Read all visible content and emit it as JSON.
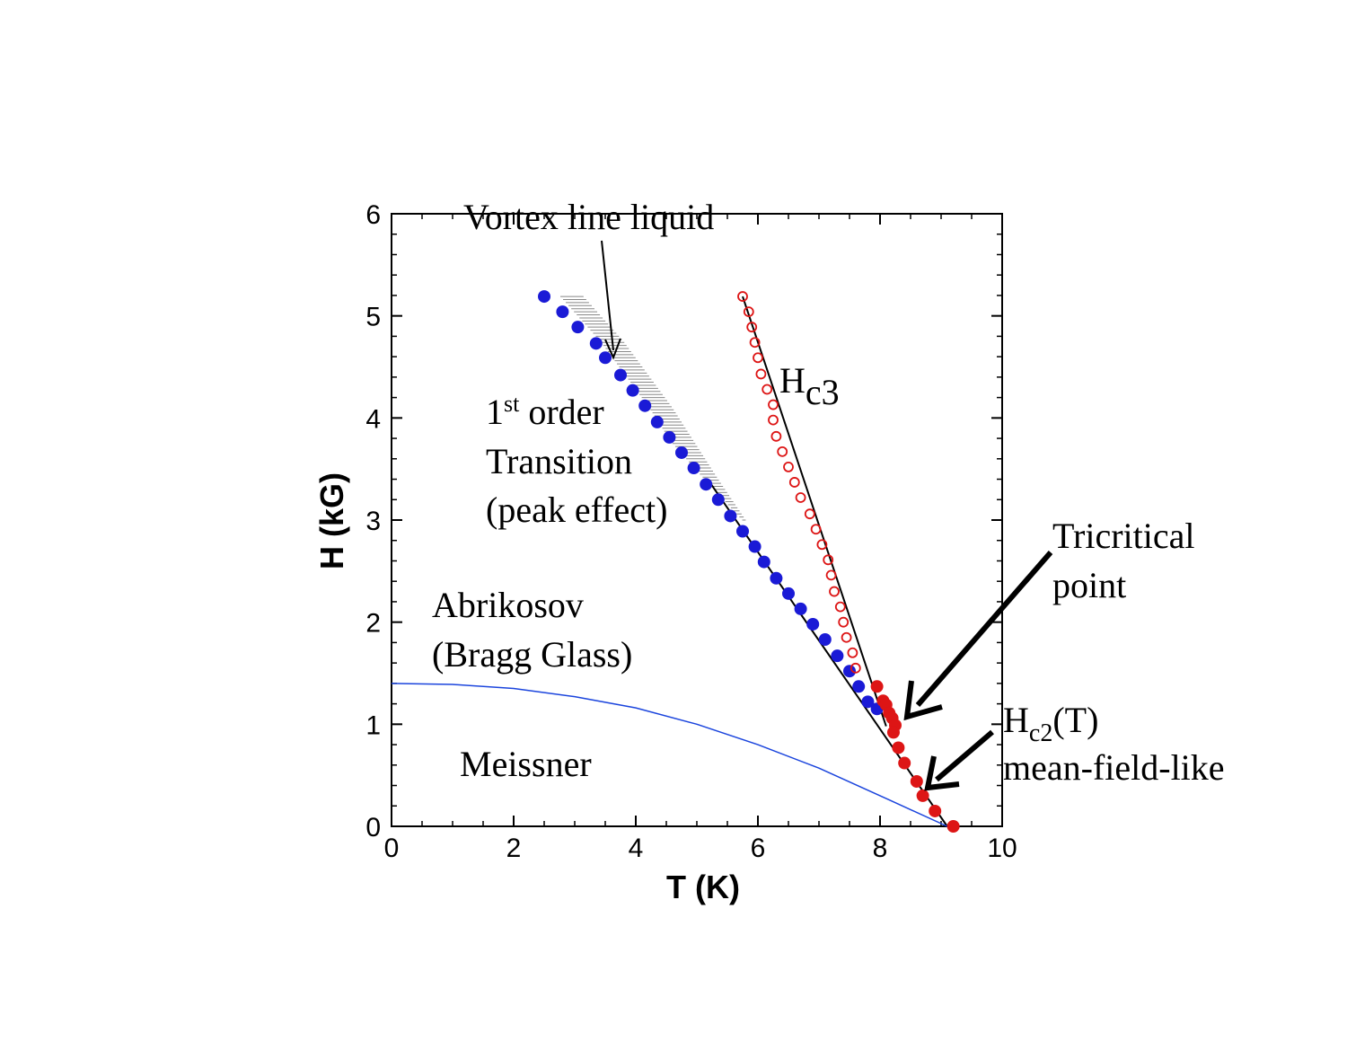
{
  "chart_data": {
    "type": "scatter",
    "xlabel": "T (K)",
    "ylabel": "H (kG)",
    "xlim": [
      0,
      10
    ],
    "ylim": [
      0,
      6
    ],
    "x_ticks": [
      "0",
      "2",
      "4",
      "6",
      "8",
      "10"
    ],
    "y_ticks": [
      "0",
      "1",
      "2",
      "3",
      "4",
      "5",
      "6"
    ],
    "grid": false,
    "series": [
      {
        "marker": "filled-circle",
        "color": "#1a1ad6",
        "points": [
          [
            2.5,
            5.19
          ],
          [
            2.8,
            5.04
          ],
          [
            3.05,
            4.89
          ],
          [
            3.35,
            4.73
          ],
          [
            3.5,
            4.59
          ],
          [
            3.75,
            4.42
          ],
          [
            3.95,
            4.27
          ],
          [
            4.15,
            4.12
          ],
          [
            4.35,
            3.96
          ],
          [
            4.55,
            3.81
          ],
          [
            4.75,
            3.66
          ],
          [
            4.95,
            3.51
          ],
          [
            5.15,
            3.35
          ],
          [
            5.35,
            3.2
          ],
          [
            5.55,
            3.04
          ],
          [
            5.75,
            2.89
          ],
          [
            5.95,
            2.74
          ],
          [
            6.1,
            2.59
          ],
          [
            6.3,
            2.43
          ],
          [
            6.5,
            2.28
          ],
          [
            6.7,
            2.13
          ],
          [
            6.9,
            1.98
          ],
          [
            7.1,
            1.83
          ],
          [
            7.3,
            1.67
          ],
          [
            7.5,
            1.52
          ],
          [
            7.65,
            1.37
          ],
          [
            7.8,
            1.22
          ],
          [
            7.95,
            1.15
          ]
        ]
      },
      {
        "marker": "filled-circle",
        "color": "#dd1515",
        "points": [
          [
            7.95,
            1.37
          ],
          [
            8.05,
            1.23
          ],
          [
            8.1,
            1.19
          ],
          [
            8.15,
            1.11
          ],
          [
            8.2,
            1.06
          ],
          [
            8.25,
            0.99
          ],
          [
            8.22,
            0.92
          ],
          [
            8.3,
            0.77
          ],
          [
            8.4,
            0.62
          ],
          [
            8.6,
            0.44
          ],
          [
            8.7,
            0.3
          ],
          [
            8.9,
            0.15
          ],
          [
            9.2,
            0.0
          ]
        ]
      },
      {
        "marker": "open-circle",
        "color": "#dd1515",
        "points": [
          [
            5.75,
            5.19
          ],
          [
            5.85,
            5.04
          ],
          [
            5.9,
            4.89
          ],
          [
            5.95,
            4.74
          ],
          [
            6.0,
            4.59
          ],
          [
            6.05,
            4.43
          ],
          [
            6.15,
            4.28
          ],
          [
            6.25,
            4.13
          ],
          [
            6.25,
            3.98
          ],
          [
            6.3,
            3.82
          ],
          [
            6.4,
            3.67
          ],
          [
            6.5,
            3.52
          ],
          [
            6.6,
            3.37
          ],
          [
            6.7,
            3.22
          ],
          [
            6.85,
            3.06
          ],
          [
            6.95,
            2.91
          ],
          [
            7.05,
            2.76
          ],
          [
            7.15,
            2.61
          ],
          [
            7.2,
            2.46
          ],
          [
            7.25,
            2.3
          ],
          [
            7.35,
            2.15
          ],
          [
            7.4,
            2.0
          ],
          [
            7.45,
            1.85
          ],
          [
            7.55,
            1.7
          ],
          [
            7.6,
            1.55
          ]
        ]
      }
    ],
    "lines": [
      {
        "name": "fit_first_order",
        "color": "#000000",
        "points": [
          [
            5.2,
            3.38
          ],
          [
            9.1,
            0.0
          ]
        ]
      },
      {
        "name": "fit_hc3",
        "color": "#000000",
        "points": [
          [
            5.75,
            5.19
          ],
          [
            8.1,
            0.98
          ]
        ]
      },
      {
        "name": "meissner_boundary",
        "color": "#1a44dd",
        "points": [
          [
            0,
            1.4
          ],
          [
            1,
            1.39
          ],
          [
            2,
            1.35
          ],
          [
            3,
            1.27
          ],
          [
            4,
            1.16
          ],
          [
            5,
            1.0
          ],
          [
            6,
            0.8
          ],
          [
            7,
            0.57
          ],
          [
            8,
            0.3
          ],
          [
            9.1,
            0.0
          ]
        ]
      }
    ],
    "hatched_band": [
      [
        3.1,
        5.22
      ],
      [
        3.8,
        4.75
      ],
      [
        4.6,
        4.1
      ],
      [
        5.35,
        3.4
      ],
      [
        5.8,
        3.0
      ]
    ],
    "annotations": {
      "vortex": "Vortex line liquid",
      "first_order_sup_num": "1",
      "first_order_sup": "st",
      "first_order_rest": " order",
      "transition": "Transition",
      "peak_effect": "(peak effect)",
      "hc3_main": "H",
      "hc3_sub": "c3",
      "tricritical_1": "Tricritical",
      "tricritical_2": "point",
      "hc2_main": "H",
      "hc2_sub": "c2",
      "hc2_rest": "(T)",
      "mean_field": "mean-field-like",
      "abrikosov": "Abrikosov",
      "bragg": "(Bragg Glass)",
      "meissner": "Meissner"
    }
  }
}
